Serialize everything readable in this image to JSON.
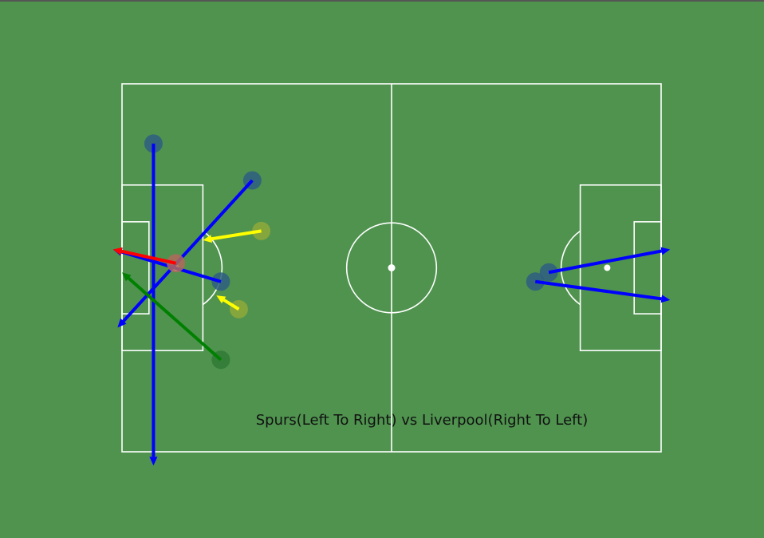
{
  "caption": "Spurs(Left To Right) vs Liverpool(Right To Left)",
  "colors": {
    "pitch": "#4f934f",
    "lines": "#ffffff",
    "marker_blue": "#2e5e80",
    "marker_yellow": "#8ea83a",
    "marker_green": "#2f7a35",
    "marker_red": "#b06a5a"
  },
  "chart_data": {
    "type": "scatter",
    "pitch": {
      "length": 120,
      "width": 80
    },
    "shots": [
      {
        "color": "#0000ff",
        "start": [
          7,
          67
        ],
        "end": [
          7,
          -3
        ]
      },
      {
        "color": "#0000ff",
        "start": [
          29,
          59
        ],
        "end": [
          -1,
          27
        ]
      },
      {
        "color": "#0000ff",
        "start": [
          22,
          37
        ],
        "end": [
          -2,
          44
        ]
      },
      {
        "color": "#ffff00",
        "start": [
          31,
          48
        ],
        "end": [
          18,
          46
        ]
      },
      {
        "color": "#ffff00",
        "start": [
          26,
          31
        ],
        "end": [
          21,
          34
        ]
      },
      {
        "color": "#ff0000",
        "start": [
          12,
          41
        ],
        "end": [
          -2,
          44
        ]
      },
      {
        "color": "#008000",
        "start": [
          22,
          20
        ],
        "end": [
          0,
          39
        ]
      },
      {
        "color": "#0000ff",
        "start": [
          95,
          39
        ],
        "end": [
          122,
          44
        ]
      },
      {
        "color": "#0000ff",
        "start": [
          92,
          37
        ],
        "end": [
          122,
          33
        ]
      }
    ]
  }
}
